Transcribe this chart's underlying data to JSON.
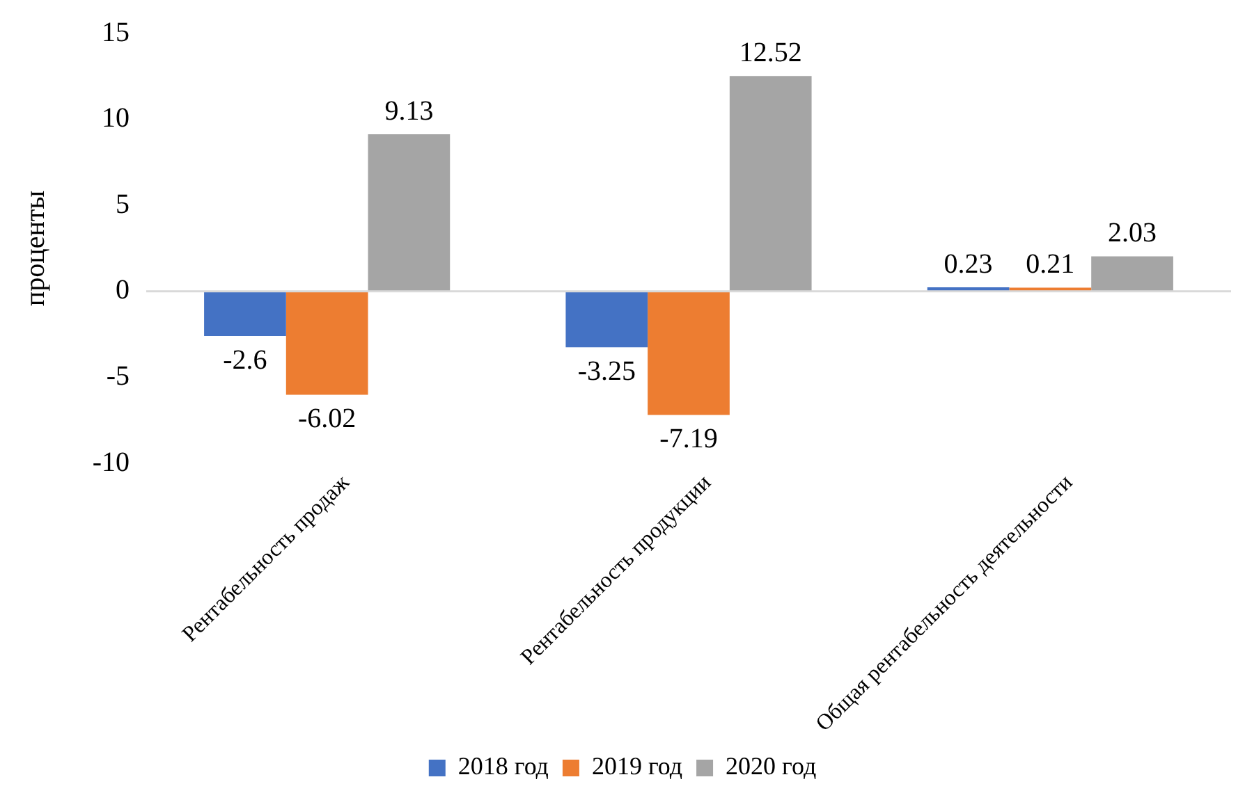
{
  "chart_data": {
    "type": "bar",
    "ylabel": "проценты",
    "categories": [
      "Рентабельность продаж",
      "Рентабельность продукции",
      "Общая рентабельность деятельности"
    ],
    "series": [
      {
        "name": "2018 год",
        "color": "#4472c4",
        "values": [
          -2.6,
          -3.25,
          0.23
        ]
      },
      {
        "name": "2019 год",
        "color": "#ed7d31",
        "values": [
          -6.02,
          -7.19,
          0.21
        ]
      },
      {
        "name": "2020 год",
        "color": "#a5a5a5",
        "values": [
          9.13,
          12.52,
          2.03
        ]
      }
    ],
    "ylim": [
      -10,
      15
    ],
    "yticks": [
      -10,
      -5,
      0,
      5,
      10,
      15
    ],
    "grid": false,
    "ref_lines": [
      {
        "axis": "y",
        "value": 0,
        "color": "#d9d9d9"
      }
    ],
    "legend": "bottom",
    "data_labels": true
  }
}
